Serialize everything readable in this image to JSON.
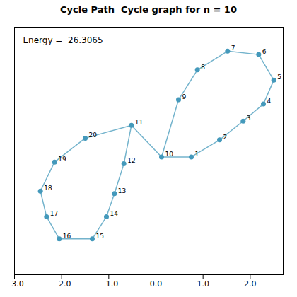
{
  "chart_data": {
    "type": "network",
    "title": "Cycle Path  Cycle graph for n = 10",
    "annotation": "Energy =  26.3065",
    "color": "#4499BB",
    "xlim": [
      -3.0,
      2.7
    ],
    "xticks": [
      -3,
      -2,
      -1,
      0,
      1,
      2
    ],
    "ylim": [
      -1.2,
      1.7
    ],
    "yticks": [],
    "tick_labels": "x",
    "grid": false,
    "nodes": [
      {
        "label": "1",
        "x": 0.75,
        "y": 0.18
      },
      {
        "label": "2",
        "x": 1.35,
        "y": 0.38
      },
      {
        "label": "3",
        "x": 1.85,
        "y": 0.6
      },
      {
        "label": "4",
        "x": 2.28,
        "y": 0.8
      },
      {
        "label": "5",
        "x": 2.5,
        "y": 1.08
      },
      {
        "label": "6",
        "x": 2.18,
        "y": 1.38
      },
      {
        "label": "7",
        "x": 1.52,
        "y": 1.42
      },
      {
        "label": "8",
        "x": 0.88,
        "y": 1.2
      },
      {
        "label": "9",
        "x": 0.48,
        "y": 0.85
      },
      {
        "label": "10",
        "x": 0.12,
        "y": 0.18
      },
      {
        "label": "11",
        "x": -0.52,
        "y": 0.55
      },
      {
        "label": "12",
        "x": -0.68,
        "y": 0.1
      },
      {
        "label": "13",
        "x": -0.88,
        "y": -0.25
      },
      {
        "label": "14",
        "x": -1.05,
        "y": -0.52
      },
      {
        "label": "15",
        "x": -1.35,
        "y": -0.78
      },
      {
        "label": "16",
        "x": -2.05,
        "y": -0.78
      },
      {
        "label": "17",
        "x": -2.32,
        "y": -0.52
      },
      {
        "label": "18",
        "x": -2.45,
        "y": -0.22
      },
      {
        "label": "19",
        "x": -2.15,
        "y": 0.12
      },
      {
        "label": "20",
        "x": -1.5,
        "y": 0.4
      }
    ],
    "edges": [
      [
        "1",
        "2"
      ],
      [
        "2",
        "3"
      ],
      [
        "3",
        "4"
      ],
      [
        "4",
        "5"
      ],
      [
        "5",
        "6"
      ],
      [
        "6",
        "7"
      ],
      [
        "7",
        "8"
      ],
      [
        "8",
        "9"
      ],
      [
        "9",
        "10"
      ],
      [
        "10",
        "1"
      ],
      [
        "10",
        "11"
      ],
      [
        "11",
        "20"
      ],
      [
        "20",
        "19"
      ],
      [
        "19",
        "18"
      ],
      [
        "18",
        "17"
      ],
      [
        "17",
        "16"
      ],
      [
        "16",
        "15"
      ],
      [
        "15",
        "14"
      ],
      [
        "14",
        "13"
      ],
      [
        "13",
        "12"
      ],
      [
        "12",
        "11"
      ]
    ]
  }
}
